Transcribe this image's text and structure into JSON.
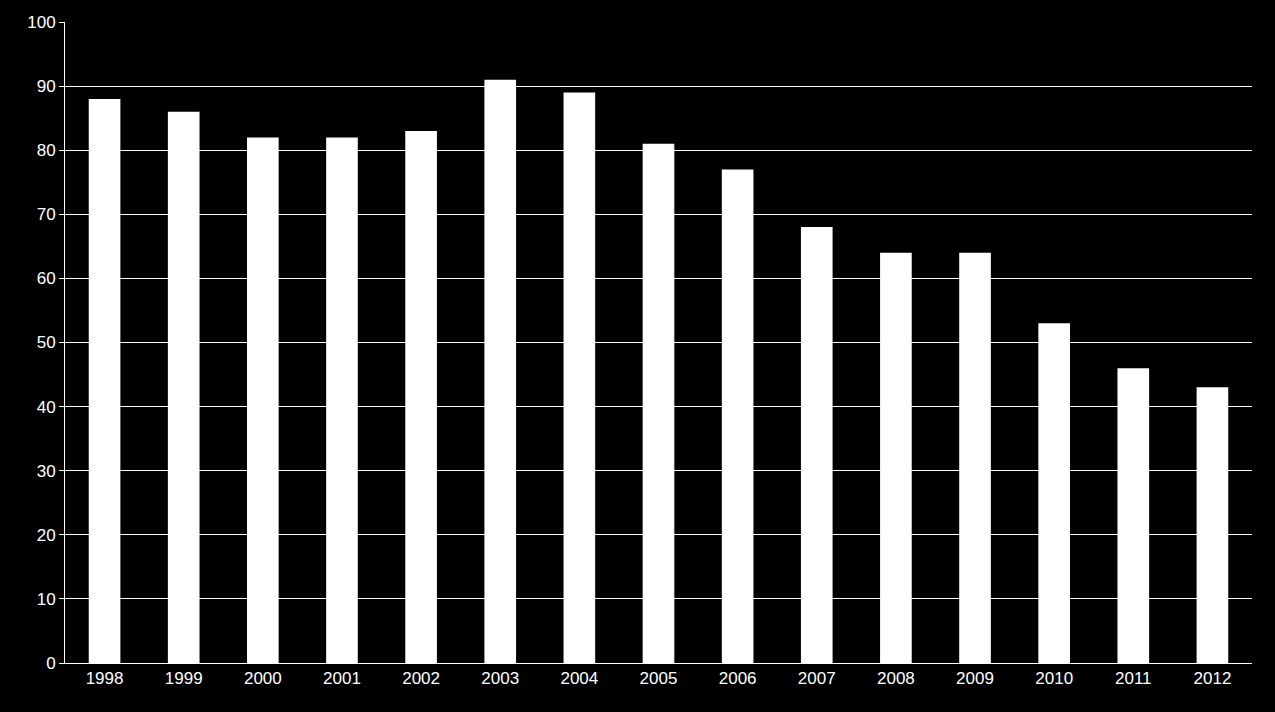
{
  "chart_data": {
    "type": "bar",
    "categories": [
      "1998",
      "1999",
      "2000",
      "2001",
      "2002",
      "2003",
      "2004",
      "2005",
      "2006",
      "2007",
      "2008",
      "2009",
      "2010",
      "2011",
      "2012"
    ],
    "values": [
      88,
      86,
      82,
      82,
      83,
      91,
      89,
      81,
      77,
      68,
      64,
      64,
      53,
      46,
      43
    ],
    "color": "#ffffff",
    "ylim": [
      0,
      100
    ],
    "yticks": [
      0,
      10,
      20,
      30,
      40,
      50,
      60,
      70,
      80,
      90,
      100
    ],
    "grid": true
  }
}
